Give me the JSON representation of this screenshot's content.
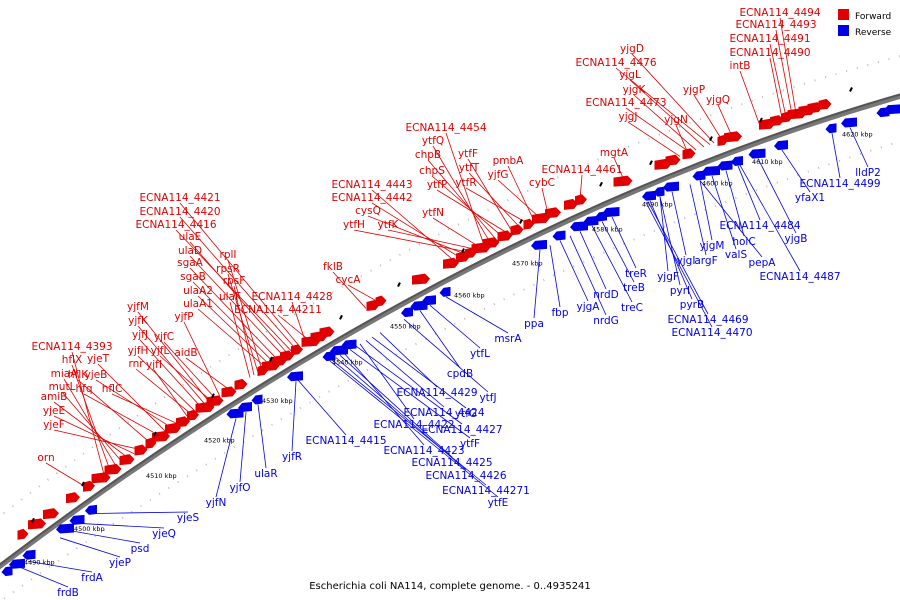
{
  "caption": "Escherichia coli NA114, complete genome. - 0..4935241",
  "legend": {
    "forward_label": "Forward",
    "reverse_label": "Reverse",
    "forward_color": "#e00000",
    "reverse_color": "#0000e6"
  },
  "ticks": [
    "4490 kbp",
    "4500 kbp",
    "4510 kbp",
    "4520 kbp",
    "4530 kbp",
    "4540 kbp",
    "4550 kbp",
    "4560 kbp",
    "4570 kbp",
    "4580 kbp",
    "4590 kbp",
    "4600 kbp",
    "4610 kbp",
    "4620 kbp"
  ],
  "forward_labels": [
    "ECNA114_4494",
    "ECNA114_4493",
    "ECNA114_4491",
    "ECNA114_4490",
    "intB",
    "yjgD",
    "ECNA114_4476",
    "yjgL",
    "yjgK",
    "ECNA114_4473",
    "yjgJ",
    "yjgP",
    "yjgQ",
    "yjgN",
    "mgtA",
    "ECNA114_4461",
    "cybC",
    "ECNA114_4454",
    "ytfQ",
    "chpB",
    "chpS",
    "ytfP",
    "ytfF",
    "ytfT",
    "ytfR",
    "pmbA",
    "yjfG",
    "ECNA114_4443",
    "ECNA114_4442",
    "cysQ",
    "ytfH",
    "ytfK",
    "ytfN",
    "fklB",
    "cycA",
    "ECNA114_4421",
    "ECNA114_4420",
    "ECNA114_4416",
    "ulaE",
    "ulaD",
    "sgaA",
    "sgaB",
    "ulaA2",
    "ulaA1",
    "rplI",
    "rpsR",
    "rpsF",
    "ulaF",
    "ECNA114_4428",
    "ECNA114_44211",
    "yjfM",
    "yjfK",
    "yjfJ",
    "yjfH",
    "rnr",
    "yjfI",
    "yjfP",
    "yjfC",
    "yjfL",
    "aidB",
    "ECNA114_4393",
    "hflX",
    "miaA",
    "mutL",
    "amiB",
    "yjeE",
    "yjeF",
    "hflK",
    "hfq",
    "yjeT",
    "yjeB",
    "hflC",
    "orn"
  ],
  "reverse_labels": [
    "lldP2",
    "ECNA114_4499",
    "yfaX1",
    "yjgB",
    "ECNA114_4487",
    "ECNA114_4484",
    "holC",
    "valS",
    "pepA",
    "yjgM",
    "argF",
    "yjgI",
    "yjgF",
    "pyrI",
    "pyrB",
    "ECNA114_4469",
    "ECNA114_4470",
    "treR",
    "treB",
    "treC",
    "nrdD",
    "nrdG",
    "yjgA",
    "fbp",
    "ppa",
    "msrA",
    "ytfL",
    "cpdB",
    "ytfJ",
    "ECNA114_4429",
    "ytfG",
    "ECNA114_4424",
    "ECNA114_4422",
    "ECNA114_4427",
    "ytfF",
    "ECNA114_4423",
    "ECNA114_4425",
    "ECNA114_4426",
    "ECNA114_44271",
    "ytfE",
    "ECNA114_4415",
    "yjfR",
    "ulaR",
    "yjfO",
    "yjfN",
    "yjeS",
    "yjeQ",
    "psd",
    "yjeP",
    "frdA",
    "frdB"
  ]
}
